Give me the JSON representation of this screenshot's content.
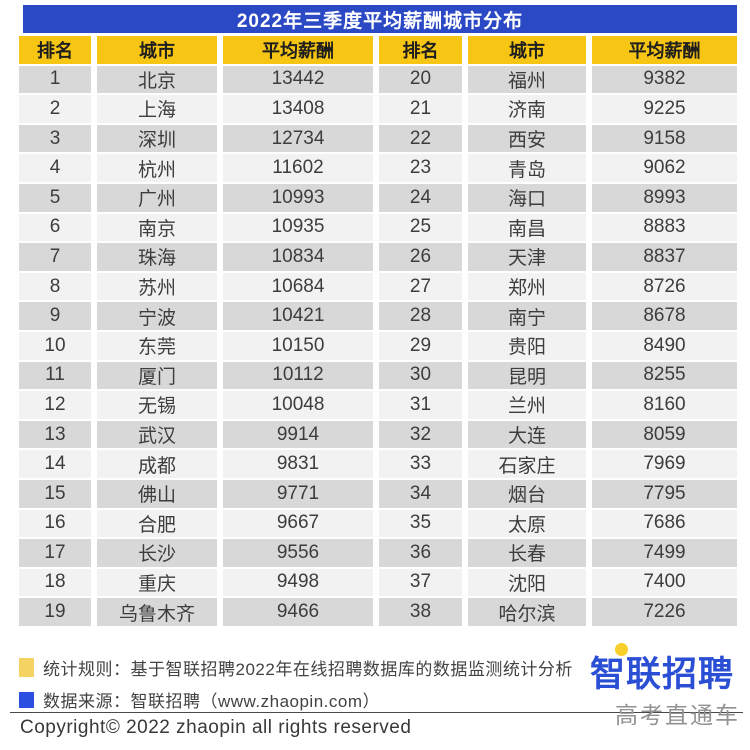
{
  "title": "2022年三季度平均薪酬城市分布",
  "colors": {
    "title_bar_blue": "#2b49c4",
    "header_yellow": "#f7c514",
    "row_dark_gray": "#d8d8d8",
    "row_light_gray": "#f2f2f2",
    "note_yellow_square": "#f5d363",
    "note_blue_square": "#2b4fe0",
    "logo_blue": "#2a4fd4",
    "logo_dot_yellow": "#f8cf2a",
    "watermark_gray": "#929292"
  },
  "chart_data": {
    "type": "table",
    "title": "2022年三季度平均薪酬城市分布",
    "columns": [
      "排名",
      "城市",
      "平均薪酬",
      "排名",
      "城市",
      "平均薪酬"
    ],
    "rows": [
      [
        "1",
        "北京",
        "13442",
        "20",
        "福州",
        "9382"
      ],
      [
        "2",
        "上海",
        "13408",
        "21",
        "济南",
        "9225"
      ],
      [
        "3",
        "深圳",
        "12734",
        "22",
        "西安",
        "9158"
      ],
      [
        "4",
        "杭州",
        "11602",
        "23",
        "青岛",
        "9062"
      ],
      [
        "5",
        "广州",
        "10993",
        "24",
        "海口",
        "8993"
      ],
      [
        "6",
        "南京",
        "10935",
        "25",
        "南昌",
        "8883"
      ],
      [
        "7",
        "珠海",
        "10834",
        "26",
        "天津",
        "8837"
      ],
      [
        "8",
        "苏州",
        "10684",
        "27",
        "郑州",
        "8726"
      ],
      [
        "9",
        "宁波",
        "10421",
        "28",
        "南宁",
        "8678"
      ],
      [
        "10",
        "东莞",
        "10150",
        "29",
        "贵阳",
        "8490"
      ],
      [
        "11",
        "厦门",
        "10112",
        "30",
        "昆明",
        "8255"
      ],
      [
        "12",
        "无锡",
        "10048",
        "31",
        "兰州",
        "8160"
      ],
      [
        "13",
        "武汉",
        "9914",
        "32",
        "大连",
        "8059"
      ],
      [
        "14",
        "成都",
        "9831",
        "33",
        "石家庄",
        "7969"
      ],
      [
        "15",
        "佛山",
        "9771",
        "34",
        "烟台",
        "7795"
      ],
      [
        "16",
        "合肥",
        "9667",
        "35",
        "太原",
        "7686"
      ],
      [
        "17",
        "长沙",
        "9556",
        "36",
        "长春",
        "7499"
      ],
      [
        "18",
        "重庆",
        "9498",
        "37",
        "沈阳",
        "7400"
      ],
      [
        "19",
        "乌鲁木齐",
        "9466",
        "38",
        "哈尔滨",
        "7226"
      ]
    ]
  },
  "footer": {
    "note_rule": "统计规则：基于智联招聘2022年在线招聘数据库的数据监测统计分析",
    "note_source": "数据来源：智联招聘（www.zhaopin.com）",
    "copyright": "Copyright© 2022 zhaopin all rights reserved",
    "logo_text": "智联招聘",
    "watermark_text": "高考直通车"
  }
}
